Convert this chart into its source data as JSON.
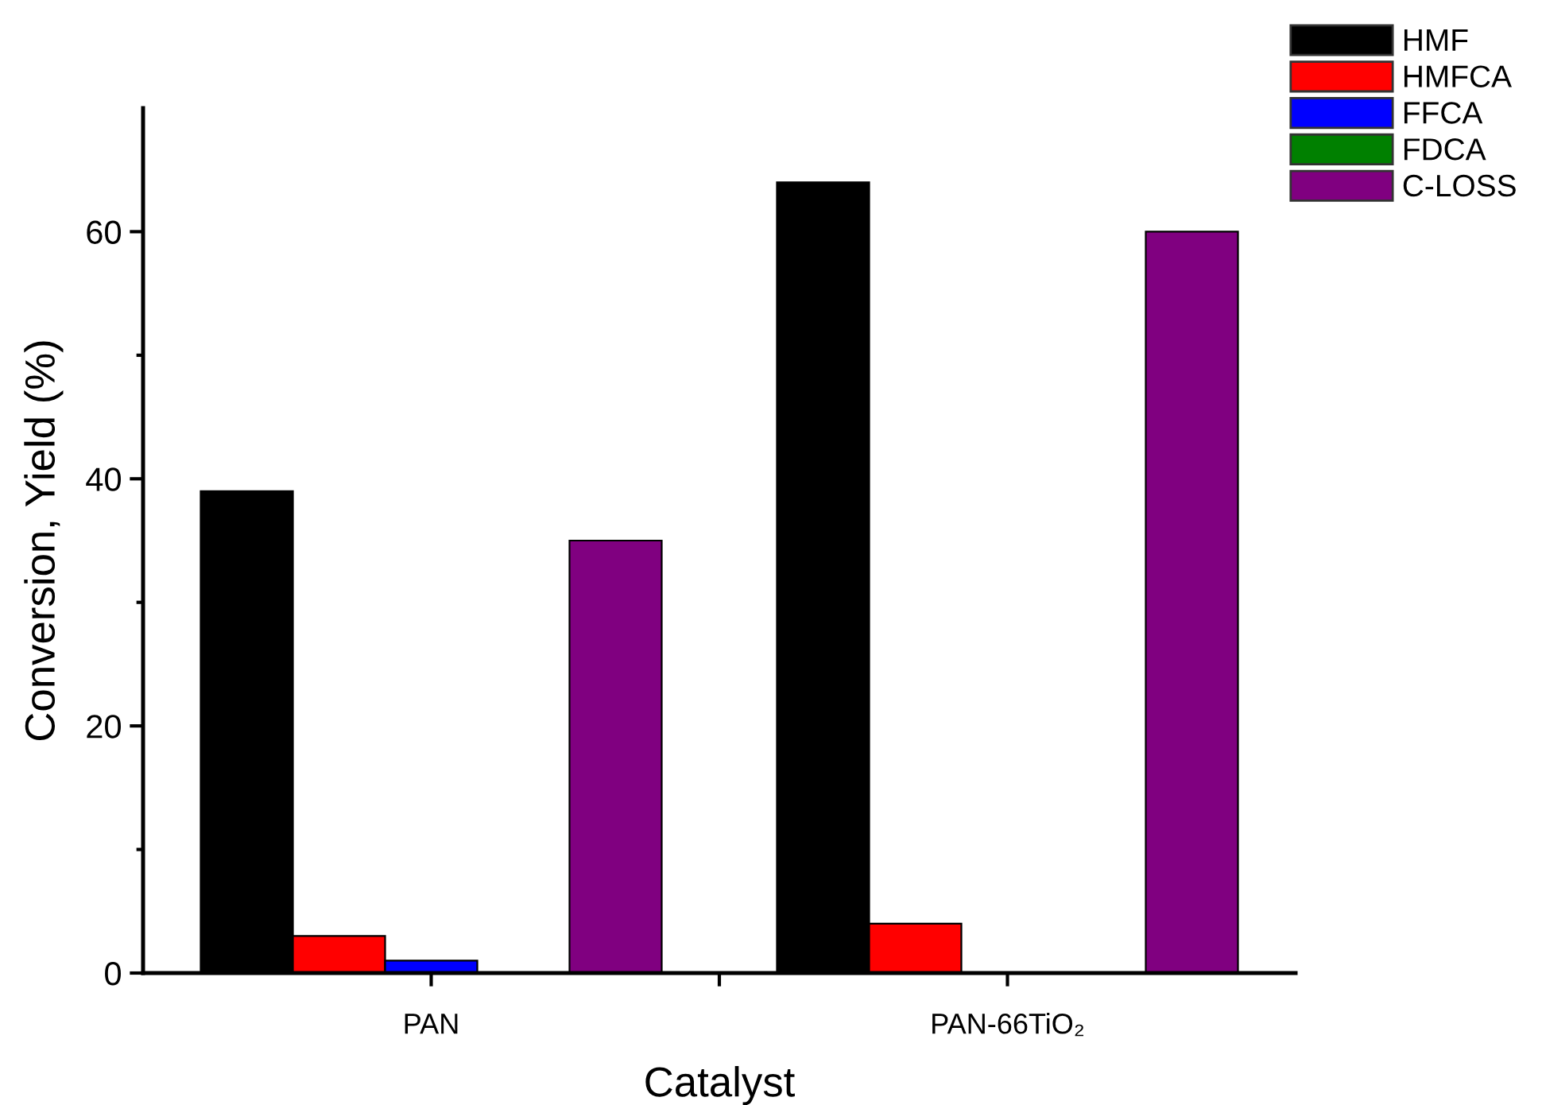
{
  "chart_data": {
    "type": "bar",
    "xlabel": "Catalyst",
    "ylabel": "Conversion, Yield (%)",
    "categories": [
      "PAN",
      "PAN-66TiO₂"
    ],
    "series": [
      {
        "name": "HMF",
        "color": "#000000",
        "values": [
          39,
          64
        ]
      },
      {
        "name": "HMFCA",
        "color": "#ff0000",
        "values": [
          3,
          4
        ]
      },
      {
        "name": "FFCA",
        "color": "#0000ff",
        "values": [
          1,
          0
        ]
      },
      {
        "name": "FDCA",
        "color": "#008000",
        "values": [
          0,
          0
        ]
      },
      {
        "name": "C-LOSS",
        "color": "#800080",
        "values": [
          35,
          60
        ]
      }
    ],
    "ylim": [
      0,
      70
    ],
    "yticks": [
      0,
      {
        "value": 10,
        "label": null
      },
      20,
      {
        "value": 30,
        "label": null
      },
      40,
      {
        "value": 50,
        "label": null
      },
      60
    ],
    "grid": false,
    "legend": "top right"
  }
}
